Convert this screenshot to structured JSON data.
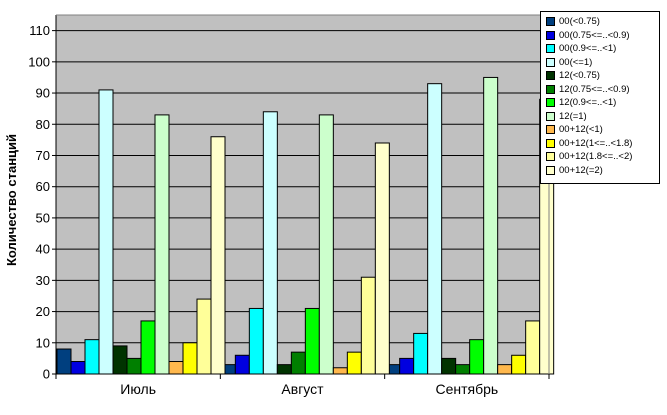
{
  "chart_data": {
    "type": "bar",
    "ylabel": "Количество станций",
    "xlabel": "",
    "ylim": [
      0,
      115
    ],
    "yticks": [
      0,
      10,
      20,
      30,
      40,
      50,
      60,
      70,
      80,
      90,
      100,
      110
    ],
    "grid": true,
    "legend_position": "top-right",
    "categories": [
      "Июль",
      "Август",
      "Сентябрь"
    ],
    "series": [
      {
        "name": "00(<0.75)",
        "color": "#003f7f",
        "values": [
          8,
          3,
          3
        ]
      },
      {
        "name": "00(0.75<=..<0.9)",
        "color": "#0000e0",
        "values": [
          4,
          6,
          5
        ]
      },
      {
        "name": "00(0.9<=..<1)",
        "color": "#00ffff",
        "values": [
          11,
          21,
          13
        ]
      },
      {
        "name": "00(<=1)",
        "color": "#ccffff",
        "values": [
          91,
          84,
          93
        ]
      },
      {
        "name": "12(<0.75)",
        "color": "#003300",
        "values": [
          9,
          3,
          5
        ]
      },
      {
        "name": "12(0.75<=..<0.9)",
        "color": "#007f00",
        "values": [
          5,
          7,
          3
        ]
      },
      {
        "name": "12(0.9<=..<1)",
        "color": "#00ff00",
        "values": [
          17,
          21,
          11
        ]
      },
      {
        "name": "12(=1)",
        "color": "#ccffcc",
        "values": [
          83,
          83,
          95
        ]
      },
      {
        "name": "00+12(<1)",
        "color": "#ffb84d",
        "values": [
          4,
          2,
          3
        ]
      },
      {
        "name": "00+12(1<=..<1.8)",
        "color": "#ffff00",
        "values": [
          10,
          7,
          6
        ]
      },
      {
        "name": "00+12(1.8<=..<2)",
        "color": "#ffff99",
        "values": [
          24,
          31,
          17
        ]
      },
      {
        "name": "00+12(=2)",
        "color": "#ffffcc",
        "values": [
          76,
          74,
          88
        ]
      }
    ],
    "colors": {
      "plot_background": "#c0c0c0",
      "gridline": "#000000"
    }
  }
}
